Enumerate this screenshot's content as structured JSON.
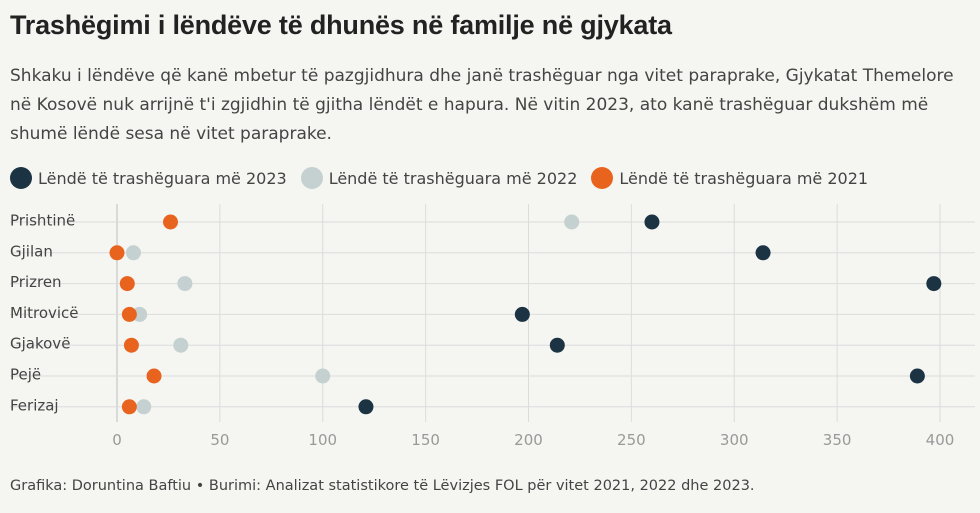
{
  "title": "Trashëgimi i lëndëve të dhunës në familje në gjykata",
  "subtitle": "Shkaku i lëndëve që kanë mbetur të pazgjidhura dhe janë trashëguar nga vitet paraprake, Gjykatat Themelore në Kosovë nuk arrijnë t'i zgjidhin të gjitha lëndët e hapura. Në vitin 2023, ato kanë trashëguar dukshëm më shumë lëndë sesa në vitet paraprake.",
  "footer": "Grafika: Doruntina Baftiu • Burimi: Analizat statistikore të Lëvizjes FOL për vitet 2021, 2022 dhe 2023.",
  "colors": {
    "s2023": "#1b3342",
    "s2022": "#c5d0d0",
    "s2021": "#e8641e",
    "grid": "#dcdcdc",
    "background": "#f5f5f2"
  },
  "chart_data": {
    "type": "scatter",
    "categories": [
      "Prishtinë",
      "Gjilan",
      "Prizren",
      "Mitrovicë",
      "Gjakovë",
      "Pejë",
      "Ferizaj"
    ],
    "series": [
      {
        "name": "Lëndë të trashëguara më 2023",
        "values": [
          260,
          314,
          397,
          197,
          214,
          389,
          121
        ]
      },
      {
        "name": "Lëndë të trashëguara më 2022",
        "values": [
          221,
          8,
          33,
          11,
          31,
          100,
          13
        ]
      },
      {
        "name": "Lëndë të trashëguara më 2021",
        "values": [
          26,
          0,
          5,
          6,
          7,
          18,
          6
        ]
      }
    ],
    "xlim": [
      0,
      400
    ],
    "xticks": [
      0,
      50,
      100,
      150,
      200,
      250,
      300,
      350,
      400
    ],
    "xlabel": "",
    "ylabel": "",
    "legend": "top-left",
    "grid": true
  }
}
